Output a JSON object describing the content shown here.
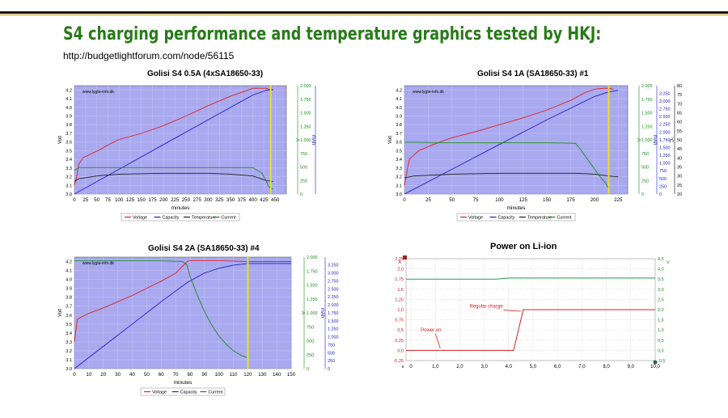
{
  "page": {
    "title": "S4 charging performance and temperature  graphics tested by HKJ:",
    "url": "http://budgetlightforum.com/node/56115"
  },
  "colors": {
    "title_green": "#2a7a1a",
    "plot_bg": "#a9a9f0",
    "voltage": "#e02020",
    "capacity": "#2020c0",
    "temperature": "#202020",
    "current": "#1a8a1a",
    "marker": "#e8e020"
  },
  "chart_data": [
    {
      "type": "line",
      "title": "Golisi S4 0.5A (4xSA18650-33)",
      "watermark": "www.lygte-info.dk",
      "xlabel": "minutes",
      "xlim": [
        0,
        475
      ],
      "xticks": [
        "0",
        "25",
        "50",
        "75",
        "100",
        "125",
        "150",
        "175",
        "200",
        "225",
        "250",
        "275",
        "300",
        "325",
        "350",
        "375",
        "400",
        "425",
        "450"
      ],
      "y_left": {
        "label": "Volt",
        "lim": [
          3.0,
          4.25
        ],
        "ticks": [
          "3.0",
          "3.1",
          "3.2",
          "3.3",
          "3.4",
          "3.5",
          "3.6",
          "3.7",
          "3.8",
          "3.9",
          "4.0",
          "4.1",
          "4.2"
        ]
      },
      "y_right": [
        {
          "label": "A",
          "lim": [
            0,
            2.05
          ],
          "ticks": [
            "0",
            "250",
            "500",
            "750",
            "1.000",
            "1.250",
            "1.500",
            "1.750",
            "2.000"
          ],
          "color": "#1a8a1a"
        },
        {
          "label": "mAh",
          "lim": [
            0,
            3500
          ],
          "ticks": [
            "0",
            "250",
            "500",
            "750",
            "1.000",
            "1.250",
            "1.500",
            "1.750",
            "2.000",
            "2.250",
            "2.500",
            "2.750",
            "3.000",
            "3.250",
            "3.500"
          ],
          "color": "#2020c0"
        },
        {
          "label": "°C",
          "lim": [
            20,
            80
          ],
          "ticks": [
            "20",
            "25",
            "30",
            "35",
            "40",
            "45",
            "50",
            "55",
            "60",
            "65",
            "70",
            "75",
            "80"
          ],
          "color": "#000000"
        }
      ],
      "legend": [
        "Voltage",
        "Capacity",
        "Temperature",
        "Current"
      ],
      "legend_position": "bottom",
      "marker_x": 440,
      "series": [
        {
          "name": "Voltage",
          "axis": "Volt",
          "x": [
            0,
            5,
            10,
            20,
            40,
            60,
            80,
            100,
            150,
            200,
            250,
            300,
            350,
            400,
            430,
            440,
            445
          ],
          "y": [
            3.1,
            3.2,
            3.35,
            3.42,
            3.47,
            3.52,
            3.58,
            3.63,
            3.7,
            3.79,
            3.9,
            4.02,
            4.13,
            4.22,
            4.22,
            4.2,
            4.2
          ]
        },
        {
          "name": "Capacity",
          "axis": "mAh",
          "x": [
            0,
            100,
            200,
            300,
            400,
            430,
            445
          ],
          "y": [
            0,
            800,
            1600,
            2400,
            3200,
            3350,
            3380
          ]
        },
        {
          "name": "Temperature",
          "axis": "°C",
          "x": [
            0,
            10,
            50,
            100,
            200,
            300,
            350,
            400,
            430,
            445
          ],
          "y": [
            27,
            28.5,
            30,
            31,
            31.5,
            31.5,
            31,
            30,
            27.5,
            27
          ]
        },
        {
          "name": "Current",
          "axis": "A",
          "x": [
            0,
            10,
            50,
            100,
            200,
            300,
            350,
            400,
            420,
            430,
            435,
            440,
            445
          ],
          "y": [
            0.45,
            0.5,
            0.5,
            0.5,
            0.5,
            0.5,
            0.5,
            0.5,
            0.4,
            0.25,
            0.15,
            0.1,
            0.1
          ]
        }
      ]
    },
    {
      "type": "line",
      "title": "Golisi S4 1A (SA18650-33) #1",
      "watermark": "www.lygte-info.dk",
      "xlabel": "minutes",
      "xlim": [
        0,
        235
      ],
      "xticks": [
        "0",
        "25",
        "50",
        "75",
        "100",
        "125",
        "150",
        "175",
        "200",
        "225"
      ],
      "y_left": {
        "label": "Volt",
        "lim": [
          3.0,
          4.25
        ],
        "ticks": [
          "3.0",
          "3.1",
          "3.2",
          "3.3",
          "3.4",
          "3.5",
          "3.6",
          "3.7",
          "3.8",
          "3.9",
          "4.0",
          "4.1",
          "4.2"
        ]
      },
      "y_right": [
        {
          "label": "A",
          "lim": [
            0,
            2.05
          ],
          "ticks": [
            "0",
            "250",
            "500",
            "750",
            "1.000",
            "1.250",
            "1.500",
            "1.750",
            "2.000"
          ],
          "color": "#1a8a1a"
        },
        {
          "label": "mAh",
          "lim": [
            0,
            3500
          ],
          "ticks": [
            "0",
            "250",
            "500",
            "750",
            "1.000",
            "1.250",
            "1.500",
            "1.750",
            "2.000",
            "2.250",
            "2.500",
            "2.750",
            "3.000",
            "3.250"
          ],
          "color": "#2020c0"
        },
        {
          "label": "°C",
          "lim": [
            20,
            80
          ],
          "ticks": [
            "20",
            "25",
            "30",
            "35",
            "40",
            "45",
            "50",
            "55",
            "60",
            "65",
            "70",
            "75",
            "80"
          ],
          "color": "#000000"
        }
      ],
      "legend": [
        "Voltage",
        "Capacity",
        "Temperature",
        "Current"
      ],
      "legend_position": "bottom",
      "marker_x": 215,
      "series": [
        {
          "name": "Voltage",
          "axis": "Volt",
          "x": [
            0,
            5,
            15,
            30,
            50,
            75,
            100,
            125,
            150,
            175,
            190,
            200,
            210,
            215,
            220
          ],
          "y": [
            3.1,
            3.4,
            3.5,
            3.57,
            3.65,
            3.72,
            3.8,
            3.88,
            3.97,
            4.08,
            4.17,
            4.21,
            4.22,
            4.22,
            4.21
          ]
        },
        {
          "name": "Capacity",
          "axis": "mAh",
          "x": [
            0,
            50,
            100,
            150,
            180,
            200,
            215,
            225
          ],
          "y": [
            0,
            800,
            1600,
            2400,
            2850,
            3150,
            3300,
            3350
          ]
        },
        {
          "name": "Temperature",
          "axis": "°C",
          "x": [
            0,
            10,
            50,
            100,
            150,
            180,
            200,
            215,
            225
          ],
          "y": [
            29,
            30,
            31,
            31.5,
            31.5,
            31.5,
            31,
            30,
            29.5
          ]
        },
        {
          "name": "Current",
          "axis": "A",
          "x": [
            0,
            10,
            50,
            100,
            150,
            180,
            185,
            195,
            205,
            212,
            215
          ],
          "y": [
            0.98,
            0.98,
            0.97,
            0.97,
            0.97,
            0.96,
            0.85,
            0.6,
            0.35,
            0.2,
            0.1
          ]
        }
      ]
    },
    {
      "type": "line",
      "title": "Golisi S4 2A (SA18650-33) #4",
      "watermark": "www.lygte-info.dk",
      "xlabel": "minutes",
      "xlim": [
        0,
        150
      ],
      "xticks": [
        "0",
        "10",
        "20",
        "30",
        "40",
        "50",
        "60",
        "70",
        "80",
        "90",
        "100",
        "110",
        "120",
        "130",
        "140",
        "150"
      ],
      "y_left": {
        "label": "Volt",
        "lim": [
          3.0,
          4.25
        ],
        "ticks": [
          "3.0",
          "3.1",
          "3.2",
          "3.3",
          "3.4",
          "3.5",
          "3.6",
          "3.7",
          "3.8",
          "3.9",
          "4.0",
          "4.1",
          "4.2"
        ]
      },
      "y_right": [
        {
          "label": "A",
          "lim": [
            0,
            2.05
          ],
          "ticks": [
            "0",
            "250",
            "500",
            "750",
            "1.000",
            "1.250",
            "1.500",
            "1.750",
            "2.000"
          ],
          "color": "#1a8a1a"
        },
        {
          "label": "mAh",
          "lim": [
            0,
            3500
          ],
          "ticks": [
            "0",
            "250",
            "500",
            "750",
            "1.000",
            "1.250",
            "1.500",
            "1.750",
            "2.000",
            "2.250",
            "2.500",
            "2.750",
            "3.000",
            "3.250"
          ],
          "color": "#2020c0"
        }
      ],
      "legend": [
        "Voltage",
        "Capacity",
        "Current"
      ],
      "legend_position": "bottom",
      "marker_x": 120,
      "series": [
        {
          "name": "Voltage",
          "axis": "Volt",
          "x": [
            0,
            2,
            5,
            10,
            20,
            30,
            40,
            50,
            60,
            70,
            75,
            78,
            80,
            90,
            100,
            120,
            150
          ],
          "y": [
            3.3,
            3.55,
            3.58,
            3.62,
            3.68,
            3.75,
            3.82,
            3.9,
            3.98,
            4.07,
            4.15,
            4.2,
            4.21,
            4.21,
            4.21,
            4.2,
            4.2
          ]
        },
        {
          "name": "Capacity",
          "axis": "mAh",
          "x": [
            0,
            20,
            40,
            60,
            78,
            90,
            100,
            110,
            120,
            150
          ],
          "y": [
            0,
            700,
            1400,
            2100,
            2700,
            3000,
            3150,
            3250,
            3300,
            3300
          ]
        },
        {
          "name": "Current",
          "axis": "A",
          "x": [
            0,
            20,
            40,
            60,
            75,
            78,
            80,
            85,
            90,
            95,
            100,
            105,
            110,
            115,
            120
          ],
          "y": [
            1.98,
            1.98,
            1.98,
            1.98,
            1.97,
            1.9,
            1.7,
            1.35,
            1.05,
            0.8,
            0.6,
            0.45,
            0.33,
            0.25,
            0.2
          ]
        }
      ]
    },
    {
      "type": "line",
      "title": "Power on Li-ion",
      "xlim": [
        -0.2,
        10
      ],
      "xticks": [
        "0",
        "1,0",
        "2,0",
        "3,0",
        "4,0",
        "5,0",
        "6,0",
        "7,0",
        "8,0",
        "9,0",
        "10,0"
      ],
      "xlabel": "s",
      "y_left": {
        "label": "A",
        "lim": [
          -0.25,
          2.25
        ],
        "ticks": [
          "-0,25",
          "0,0",
          "0,25",
          "0,5",
          "0,75",
          "1,0",
          "1,25",
          "1,5",
          "1,75",
          "2,0",
          "2,25"
        ],
        "color": "#c02020"
      },
      "y_right": [
        {
          "label": "V",
          "lim": [
            -0.5,
            4.5
          ],
          "ticks": [
            "-0,5",
            "0,0",
            "0,5",
            "1,0",
            "1,5",
            "2,0",
            "2,5",
            "3,0",
            "3,5",
            "4,0",
            "4,5"
          ],
          "color": "#1a8a1a"
        }
      ],
      "annotations": [
        "Power on",
        "Regular charge"
      ],
      "series": [
        {
          "name": "current",
          "axis": "A",
          "x": [
            -0.2,
            4.2,
            4.6,
            10
          ],
          "y": [
            0.0,
            0.0,
            1.0,
            1.0
          ]
        },
        {
          "name": "voltage",
          "axis": "V",
          "x": [
            -0.2,
            3.5,
            4.0,
            10
          ],
          "y": [
            3.5,
            3.5,
            3.55,
            3.55
          ]
        }
      ]
    }
  ]
}
